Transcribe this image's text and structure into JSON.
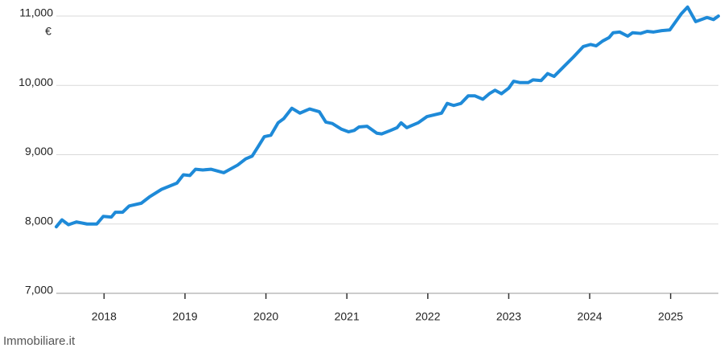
{
  "chart_data": {
    "type": "line",
    "y_unit": "€",
    "source": "Immobiliare.it",
    "x": [
      2017.41,
      2017.48,
      2017.56,
      2017.66,
      2017.79,
      2017.91,
      2017.99,
      2018.09,
      2018.14,
      2018.23,
      2018.31,
      2018.46,
      2018.56,
      2018.71,
      2018.9,
      2018.98,
      2019.06,
      2019.13,
      2019.22,
      2019.32,
      2019.48,
      2019.65,
      2019.75,
      2019.83,
      2019.9,
      2019.98,
      2020.06,
      2020.15,
      2020.22,
      2020.32,
      2020.42,
      2020.54,
      2020.66,
      2020.74,
      2020.82,
      2020.93,
      2021.02,
      2021.09,
      2021.15,
      2021.25,
      2021.37,
      2021.43,
      2021.54,
      2021.62,
      2021.67,
      2021.74,
      2021.88,
      2021.99,
      2022.17,
      2022.24,
      2022.32,
      2022.41,
      2022.5,
      2022.58,
      2022.68,
      2022.76,
      2022.83,
      2022.91,
      2023.0,
      2023.06,
      2023.14,
      2023.24,
      2023.3,
      2023.4,
      2023.48,
      2023.56,
      2023.68,
      2023.8,
      2023.92,
      2024.01,
      2024.08,
      2024.16,
      2024.24,
      2024.29,
      2024.37,
      2024.47,
      2024.53,
      2024.63,
      2024.71,
      2024.79,
      2024.89,
      2024.99,
      2025.13,
      2025.21,
      2025.31,
      2025.45,
      2025.53,
      2025.59
    ],
    "series": [
      {
        "color": "#1e8ad8",
        "values": [
          7960,
          8060,
          7990,
          8030,
          8000,
          8000,
          8110,
          8100,
          8170,
          8170,
          8260,
          8300,
          8390,
          8500,
          8590,
          8710,
          8700,
          8790,
          8780,
          8790,
          8740,
          8850,
          8940,
          8980,
          9110,
          9260,
          9280,
          9460,
          9520,
          9670,
          9600,
          9660,
          9620,
          9470,
          9450,
          9370,
          9330,
          9350,
          9400,
          9410,
          9310,
          9300,
          9350,
          9390,
          9460,
          9390,
          9460,
          9550,
          9600,
          9740,
          9710,
          9740,
          9850,
          9850,
          9800,
          9880,
          9930,
          9880,
          9960,
          10060,
          10040,
          10040,
          10080,
          10070,
          10170,
          10130,
          10270,
          10410,
          10560,
          10590,
          10570,
          10640,
          10690,
          10760,
          10770,
          10710,
          10760,
          10750,
          10780,
          10770,
          10790,
          10800,
          11030,
          11130,
          10920,
          10980,
          10950,
          11000
        ]
      }
    ],
    "xlim": [
      2017.41,
      2025.59
    ],
    "xticks": [
      2018,
      2019,
      2020,
      2021,
      2022,
      2023,
      2024,
      2025
    ],
    "ylim": [
      7000,
      11200
    ],
    "yticks": [
      {
        "value": 7000,
        "label": "7,000"
      },
      {
        "value": 8000,
        "label": "8,000"
      },
      {
        "value": 9000,
        "label": "9,000"
      },
      {
        "value": 10000,
        "label": "10,000"
      },
      {
        "value": 11000,
        "label": "11,000"
      }
    ],
    "grid": true
  }
}
